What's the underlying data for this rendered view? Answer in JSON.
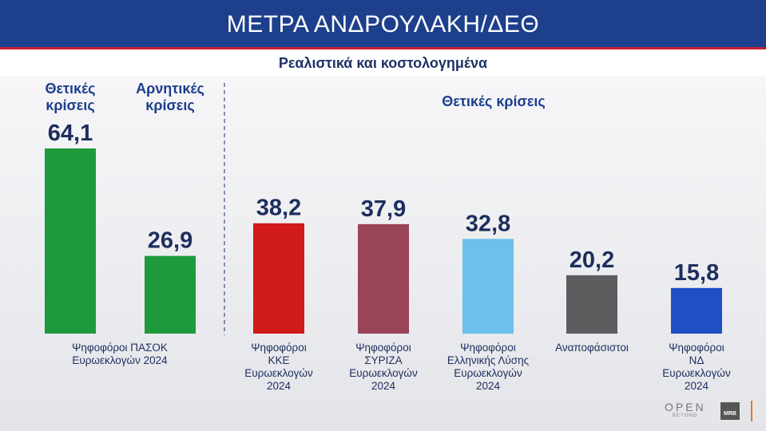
{
  "header": {
    "title": "ΜΕΤΡΑ ΑΝΔΡΟΥΛΑΚΗ/ΔΕΘ",
    "subtitle": "Ρεαλιστικά και κοστολογημένα"
  },
  "chart_data": {
    "type": "bar",
    "title": "ΜΕΤΡΑ ΑΝΔΡΟΥΛΑΚΗ/ΔΕΘ",
    "subtitle": "Ρεαλιστικά και κοστολογημένα",
    "ylim": [
      0,
      70
    ],
    "grid": false,
    "groups": [
      {
        "header": "",
        "category": [
          "Ψηφοφόροι ΠΑΣΟΚ",
          "Ευρωεκλογών 2024"
        ],
        "bars": [
          {
            "name": [
              "Θετικές",
              "κρίσεις"
            ],
            "value": 64.1,
            "label": "64,1",
            "color": "#1e9a3c"
          },
          {
            "name": [
              "Αρνητικές",
              "κρίσεις"
            ],
            "value": 26.9,
            "label": "26,9",
            "color": "#1e9a3c"
          }
        ]
      },
      {
        "header": "Θετικές κρίσεις",
        "bars": [
          {
            "category": [
              "Ψηφοφόροι",
              "ΚΚΕ",
              "Ευρωεκλογών",
              "2024"
            ],
            "value": 38.2,
            "label": "38,2",
            "color": "#d11a1a"
          },
          {
            "category": [
              "Ψηφοφόροι",
              "ΣΥΡΙΖΑ",
              "Ευρωεκλογών",
              "2024"
            ],
            "value": 37.9,
            "label": "37,9",
            "color": "#9a4457"
          },
          {
            "category": [
              "Ψηφοφόροι",
              "Ελληνικής Λύσης",
              "Ευρωεκλογών",
              "2024"
            ],
            "value": 32.8,
            "label": "32,8",
            "color": "#6cc0ea"
          },
          {
            "category": [
              "Αναποφάσιστοι"
            ],
            "value": 20.2,
            "label": "20,2",
            "color": "#5d5d5f"
          },
          {
            "category": [
              "Ψηφοφόροι",
              "ΝΔ",
              "Ευρωεκλογών",
              "2024"
            ],
            "value": 15.8,
            "label": "15,8",
            "color": "#1f4fc4"
          }
        ]
      }
    ]
  },
  "logos": {
    "channel": "OPEN",
    "channel_tag": "BEYOND",
    "pollster": "MRB"
  }
}
